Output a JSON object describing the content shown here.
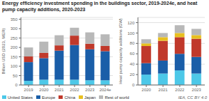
{
  "title": "Energy efficiency investment spending in the buildings sector, 2019-2024e, and heat pump capacity additions, 2020-2023",
  "annotations": [
    "IEA, CC BY 4.0"
  ],
  "legend": "bottom",
  "chart_data": [
    {
      "type": "bar",
      "stacked": true,
      "grid": true,
      "categories": [
        "2019",
        "2020",
        "2021",
        "2022",
        "2023",
        "2024e"
      ],
      "ylabel": "Billion USD (2023, MER)",
      "ylim": [
        0,
        360
      ],
      "yticks": [
        0,
        50,
        100,
        150,
        200,
        250,
        300,
        350
      ],
      "series": [
        {
          "name": "United States",
          "color": "#4dc8e8",
          "values": [
            22,
            28,
            28,
            28,
            25,
            25
          ]
        },
        {
          "name": "Europe",
          "color": "#1a5ea8",
          "values": [
            100,
            115,
            155,
            185,
            165,
            155
          ]
        },
        {
          "name": "China",
          "color": "#c0392b",
          "values": [
            30,
            28,
            28,
            50,
            30,
            28
          ]
        },
        {
          "name": "Rest of world",
          "color": "#b8b8b8",
          "values": [
            48,
            60,
            54,
            42,
            60,
            62
          ]
        }
      ]
    },
    {
      "type": "bar",
      "stacked": true,
      "grid": true,
      "categories": [
        "2020",
        "2021",
        "2022",
        "2023"
      ],
      "ylabel": "Heat pump capacity additions (GW)",
      "ylim": [
        0,
        130
      ],
      "yticks": [
        0,
        20,
        40,
        60,
        80,
        100,
        120
      ],
      "series": [
        {
          "name": "United States",
          "color": "#4dc8e8",
          "values": [
            20,
            22,
            28,
            22
          ]
        },
        {
          "name": "Europe",
          "color": "#1a5ea8",
          "values": [
            22,
            25,
            32,
            32
          ]
        },
        {
          "name": "China",
          "color": "#c0392b",
          "values": [
            33,
            38,
            32,
            35
          ]
        },
        {
          "name": "Japan",
          "color": "#e8c020",
          "values": [
            5,
            7,
            8,
            7
          ]
        },
        {
          "name": "Rest of world",
          "color": "#b8b8b8",
          "values": [
            8,
            8,
            15,
            12
          ]
        }
      ]
    }
  ]
}
